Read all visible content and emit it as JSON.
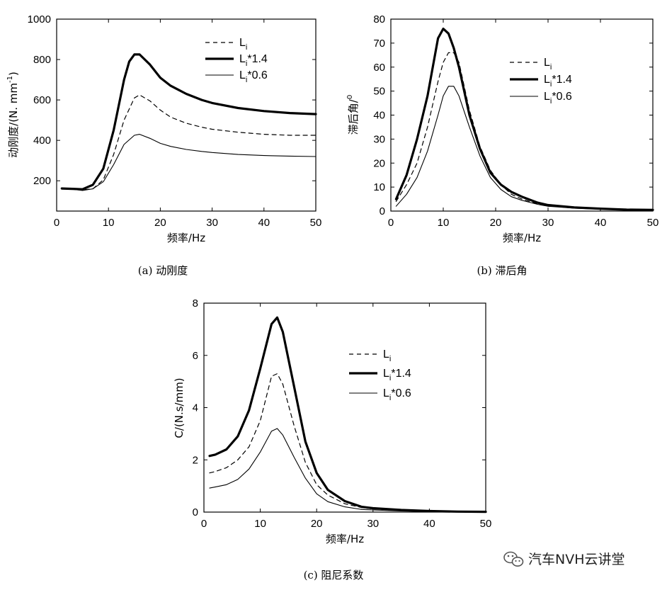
{
  "chart_data": [
    {
      "type": "line",
      "caption": "(a)  动刚度",
      "xlabel": "频率/Hz",
      "ylabel": "动刚度/(N. mm",
      "ylabel_sup": "-1",
      "ylabel_close": ")",
      "xlim": [
        0,
        50
      ],
      "ylim": [
        50,
        1000
      ],
      "xticks": [
        0,
        10,
        20,
        30,
        40,
        50
      ],
      "yticks": [
        200,
        400,
        600,
        800,
        1000
      ],
      "legend_position": "top-right",
      "series": [
        {
          "name": "L",
          "name_sub": "i",
          "style": "dashed",
          "x": [
            1,
            3,
            5,
            7,
            9,
            11,
            13,
            15,
            16,
            18,
            20,
            22,
            25,
            28,
            30,
            35,
            40,
            45,
            50
          ],
          "y": [
            162,
            158,
            155,
            160,
            205,
            330,
            500,
            610,
            625,
            595,
            550,
            515,
            485,
            465,
            455,
            440,
            430,
            425,
            425
          ]
        },
        {
          "name": "L",
          "name_sub": "i",
          "name_suffix": "*1.4",
          "style": "thick",
          "x": [
            1,
            3,
            5,
            7,
            9,
            11,
            13,
            14,
            15,
            16,
            18,
            20,
            22,
            25,
            28,
            30,
            35,
            40,
            45,
            50
          ],
          "y": [
            162,
            160,
            158,
            180,
            260,
            450,
            700,
            790,
            825,
            825,
            775,
            710,
            670,
            630,
            600,
            585,
            560,
            545,
            535,
            530
          ]
        },
        {
          "name": "L",
          "name_sub": "i",
          "name_suffix": "*0.6",
          "style": "thin",
          "x": [
            1,
            3,
            5,
            7,
            9,
            11,
            13,
            15,
            16,
            18,
            20,
            22,
            25,
            28,
            30,
            35,
            40,
            45,
            50
          ],
          "y": [
            162,
            158,
            152,
            160,
            195,
            280,
            380,
            425,
            430,
            410,
            385,
            370,
            355,
            345,
            340,
            330,
            325,
            322,
            320
          ]
        }
      ]
    },
    {
      "type": "line",
      "caption": "(b)  滞后角",
      "xlabel": "频率/Hz",
      "ylabel": "滞后角/",
      "ylabel_sup": "0",
      "xlim": [
        0,
        50
      ],
      "ylim": [
        0,
        80
      ],
      "xticks": [
        0,
        10,
        20,
        30,
        40,
        50
      ],
      "yticks": [
        0,
        10,
        20,
        30,
        40,
        50,
        60,
        70,
        80
      ],
      "legend_position": "top-right",
      "series": [
        {
          "name": "L",
          "name_sub": "i",
          "style": "dashed",
          "x": [
            1,
            3,
            5,
            7,
            9,
            10,
            11,
            12,
            13,
            15,
            17,
            19,
            21,
            23,
            25,
            28,
            30,
            35,
            40,
            45,
            50
          ],
          "y": [
            4,
            11,
            20,
            35,
            54,
            62,
            66,
            66,
            62,
            42,
            27,
            17,
            11,
            7,
            5,
            3,
            2,
            1.5,
            1,
            0.6,
            0.5
          ]
        },
        {
          "name": "L",
          "name_sub": "i",
          "name_suffix": "*1.4",
          "style": "thick",
          "x": [
            1,
            3,
            5,
            7,
            9,
            10,
            11,
            12,
            13,
            15,
            17,
            19,
            21,
            23,
            25,
            28,
            30,
            35,
            40,
            45,
            50
          ],
          "y": [
            5,
            15,
            30,
            48,
            72,
            76,
            74,
            68,
            60,
            40,
            26,
            16,
            11,
            8,
            6,
            3.5,
            2.5,
            1.5,
            1,
            0.6,
            0.5
          ]
        },
        {
          "name": "L",
          "name_sub": "i",
          "name_suffix": "*0.6",
          "style": "thin",
          "x": [
            1,
            3,
            5,
            7,
            9,
            10,
            11,
            12,
            13,
            15,
            17,
            19,
            21,
            23,
            25,
            28,
            30,
            35,
            40,
            45,
            50
          ],
          "y": [
            2,
            7,
            14,
            25,
            40,
            48,
            52,
            52,
            48,
            35,
            23,
            14,
            9,
            6,
            4.5,
            2.8,
            2,
            1.2,
            0.8,
            0.5,
            0.4
          ]
        }
      ]
    },
    {
      "type": "line",
      "caption": "(c)  阻尼系数",
      "xlabel": "频率/Hz",
      "ylabel": "C/(N.s/mm)",
      "xlim": [
        0,
        50
      ],
      "ylim": [
        0,
        8
      ],
      "xticks": [
        0,
        10,
        20,
        30,
        40,
        50
      ],
      "yticks": [
        0,
        2,
        4,
        6,
        8
      ],
      "legend_position": "top-right",
      "series": [
        {
          "name": "L",
          "name_sub": "i",
          "style": "dashed",
          "x": [
            1,
            2,
            4,
            6,
            8,
            10,
            12,
            13,
            14,
            16,
            18,
            20,
            22,
            25,
            28,
            30,
            35,
            40,
            45,
            50
          ],
          "y": [
            1.5,
            1.55,
            1.7,
            2.0,
            2.5,
            3.5,
            5.2,
            5.3,
            4.9,
            3.3,
            1.9,
            1.05,
            0.65,
            0.32,
            0.17,
            0.12,
            0.06,
            0.03,
            0.02,
            0.01
          ]
        },
        {
          "name": "L",
          "name_sub": "i",
          "name_suffix": "*1.4",
          "style": "thick",
          "x": [
            1,
            2,
            4,
            6,
            8,
            10,
            12,
            13,
            14,
            16,
            18,
            20,
            22,
            25,
            28,
            30,
            35,
            40,
            45,
            50
          ],
          "y": [
            2.15,
            2.2,
            2.4,
            2.9,
            3.9,
            5.5,
            7.2,
            7.45,
            6.9,
            4.8,
            2.7,
            1.5,
            0.85,
            0.42,
            0.2,
            0.15,
            0.08,
            0.04,
            0.02,
            0.01
          ]
        },
        {
          "name": "L",
          "name_sub": "i",
          "name_suffix": "*0.6",
          "style": "thin",
          "x": [
            1,
            2,
            4,
            6,
            8,
            10,
            12,
            13,
            14,
            16,
            18,
            20,
            22,
            25,
            28,
            30,
            35,
            40,
            45,
            50
          ],
          "y": [
            0.92,
            0.96,
            1.05,
            1.25,
            1.65,
            2.3,
            3.1,
            3.2,
            2.95,
            2.1,
            1.3,
            0.7,
            0.4,
            0.2,
            0.1,
            0.08,
            0.04,
            0.02,
            0.01,
            0.01
          ]
        }
      ]
    }
  ],
  "watermark": {
    "icon": "wechat-icon",
    "text": "汽车NVH云讲堂"
  }
}
